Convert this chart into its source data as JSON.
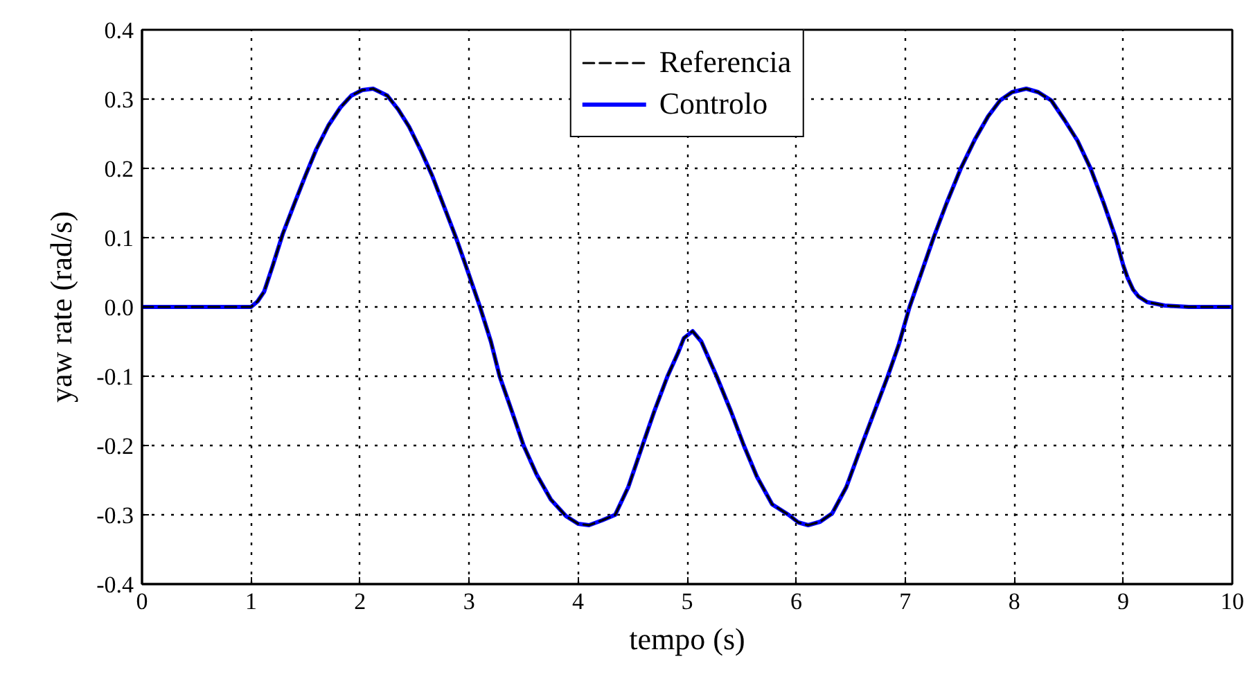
{
  "chart_data": {
    "type": "line",
    "xlabel": "tempo (s)",
    "ylabel": "yaw rate (rad/s)",
    "xlim": [
      0,
      10
    ],
    "ylim": [
      -0.4,
      0.4
    ],
    "xticks": [
      0,
      1,
      2,
      3,
      4,
      5,
      6,
      7,
      8,
      9,
      10
    ],
    "yticks": [
      -0.4,
      -0.3,
      -0.2,
      -0.1,
      {
        "value": 0,
        "label": "0.0"
      },
      0.1,
      0.2,
      0.3,
      0.4
    ],
    "grid": true,
    "legend": "top",
    "x": [
      0,
      0.5,
      1.0,
      1.06,
      1.12,
      1.2,
      1.29,
      1.4,
      1.5,
      1.6,
      1.71,
      1.82,
      1.92,
      2.02,
      2.12,
      2.25,
      2.35,
      2.45,
      2.56,
      2.66,
      2.77,
      2.88,
      2.98,
      3.1,
      3.2,
      3.28,
      3.38,
      3.5,
      3.62,
      3.75,
      3.89,
      4.0,
      4.1,
      4.22,
      4.34,
      4.46,
      4.59,
      4.7,
      4.82,
      4.92,
      4.97,
      5.05,
      5.13,
      5.2,
      5.27,
      5.4,
      5.52,
      5.64,
      5.78,
      5.93,
      6.02,
      6.11,
      6.22,
      6.33,
      6.46,
      6.6,
      6.72,
      6.84,
      6.94,
      7.04,
      7.15,
      7.26,
      7.38,
      7.51,
      7.64,
      7.76,
      7.87,
      7.98,
      8.11,
      8.22,
      8.34,
      8.46,
      8.58,
      8.7,
      8.82,
      8.93,
      9.0,
      9.04,
      9.09,
      9.14,
      9.22,
      9.38,
      9.6,
      10
    ],
    "series": [
      {
        "name": "Referencia",
        "color": "#000000",
        "line_style": "dashed",
        "values": [
          0,
          0,
          0,
          0.008,
          0.022,
          0.06,
          0.105,
          0.15,
          0.19,
          0.228,
          0.262,
          0.288,
          0.305,
          0.313,
          0.315,
          0.305,
          0.285,
          0.26,
          0.225,
          0.19,
          0.145,
          0.1,
          0.055,
          0,
          -0.05,
          -0.1,
          -0.145,
          -0.2,
          -0.242,
          -0.278,
          -0.302,
          -0.313,
          -0.315,
          -0.308,
          -0.3,
          -0.26,
          -0.2,
          -0.15,
          -0.1,
          -0.065,
          -0.045,
          -0.035,
          -0.05,
          -0.075,
          -0.1,
          -0.15,
          -0.2,
          -0.245,
          -0.285,
          -0.3,
          -0.311,
          -0.315,
          -0.31,
          -0.298,
          -0.26,
          -0.2,
          -0.15,
          -0.1,
          -0.055,
          0,
          0.05,
          0.1,
          0.15,
          0.2,
          0.242,
          0.275,
          0.298,
          0.31,
          0.315,
          0.31,
          0.298,
          0.27,
          0.24,
          0.2,
          0.15,
          0.1,
          0.06,
          0.042,
          0.025,
          0.015,
          0.007,
          0.002,
          0,
          0
        ]
      },
      {
        "name": "Controlo",
        "color": "#0000ff",
        "line_style": "solid",
        "values": [
          0,
          0,
          0,
          0.008,
          0.022,
          0.06,
          0.105,
          0.15,
          0.19,
          0.228,
          0.262,
          0.288,
          0.305,
          0.313,
          0.315,
          0.305,
          0.285,
          0.26,
          0.225,
          0.19,
          0.145,
          0.1,
          0.055,
          0,
          -0.05,
          -0.1,
          -0.145,
          -0.2,
          -0.242,
          -0.278,
          -0.302,
          -0.313,
          -0.315,
          -0.308,
          -0.3,
          -0.26,
          -0.2,
          -0.15,
          -0.1,
          -0.065,
          -0.045,
          -0.035,
          -0.05,
          -0.075,
          -0.1,
          -0.15,
          -0.2,
          -0.245,
          -0.285,
          -0.3,
          -0.311,
          -0.315,
          -0.31,
          -0.298,
          -0.26,
          -0.2,
          -0.15,
          -0.1,
          -0.055,
          0,
          0.05,
          0.1,
          0.15,
          0.2,
          0.242,
          0.275,
          0.298,
          0.31,
          0.315,
          0.31,
          0.298,
          0.27,
          0.24,
          0.2,
          0.15,
          0.1,
          0.06,
          0.042,
          0.025,
          0.015,
          0.007,
          0.002,
          0,
          0
        ]
      }
    ]
  }
}
